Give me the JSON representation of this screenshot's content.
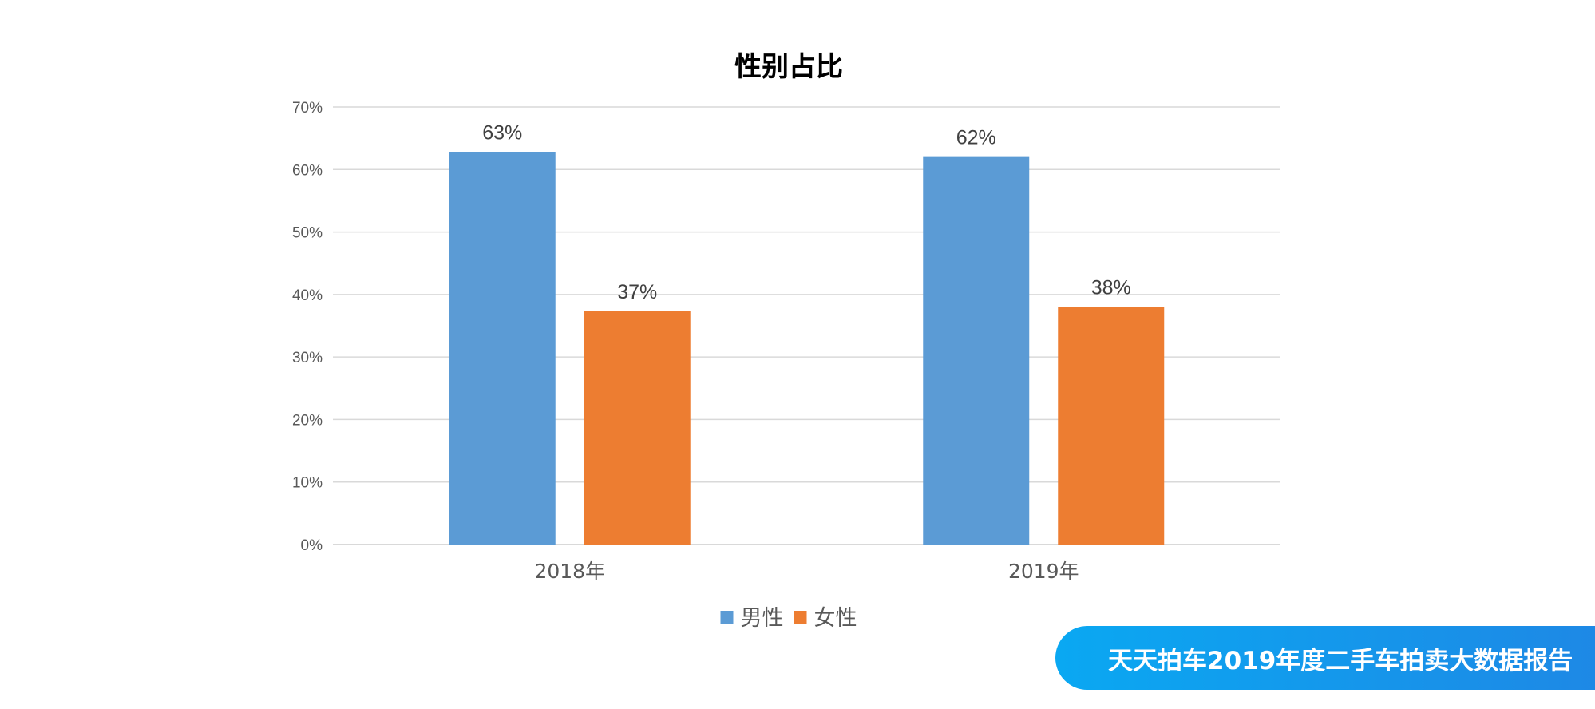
{
  "chart_data": {
    "type": "bar",
    "title": "性别占比",
    "categories": [
      "2018年",
      "2019年"
    ],
    "series": [
      {
        "name": "男性",
        "color": "#5b9bd5",
        "values": [
          0.628,
          0.62
        ],
        "labels": [
          "63%",
          "62%"
        ]
      },
      {
        "name": "女性",
        "color": "#ed7d31",
        "values": [
          0.373,
          0.38
        ],
        "labels": [
          "37%",
          "38%"
        ]
      }
    ],
    "ylim": [
      0,
      0.7
    ],
    "yticks": [
      {
        "value": 0,
        "label": "0%"
      },
      {
        "value": 0.1,
        "label": "10%"
      },
      {
        "value": 0.2,
        "label": "20%"
      },
      {
        "value": 0.3,
        "label": "30%"
      },
      {
        "value": 0.4,
        "label": "40%"
      },
      {
        "value": 0.5,
        "label": "50%"
      },
      {
        "value": 0.6,
        "label": "60%"
      },
      {
        "value": 0.7,
        "label": "70%"
      }
    ],
    "grid": true,
    "legend": "bottom-center",
    "xlabel": "",
    "ylabel": ""
  },
  "banner": {
    "text": "天天拍车2019年度二手车拍卖大数据报告",
    "color": "#1a96ec"
  }
}
